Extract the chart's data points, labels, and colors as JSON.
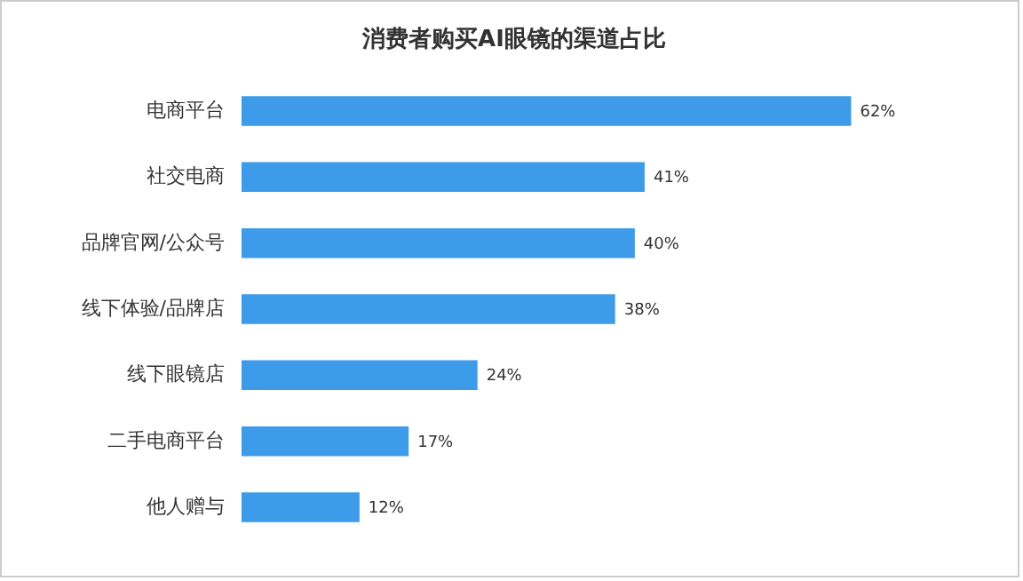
{
  "chart_data": {
    "type": "bar",
    "orientation": "horizontal",
    "title": "消费者购买AI眼镜的渠道占比",
    "categories": [
      "电商平台",
      "社交电商",
      "品牌官网/公众号",
      "线下体验/品牌店",
      "线下眼镜店",
      "二手电商平台",
      "他人赠与"
    ],
    "values": [
      62,
      41,
      40,
      38,
      24,
      17,
      12
    ],
    "value_labels": [
      "62%",
      "41%",
      "40%",
      "38%",
      "24%",
      "17%",
      "12%"
    ],
    "color": "#3d9be9"
  }
}
